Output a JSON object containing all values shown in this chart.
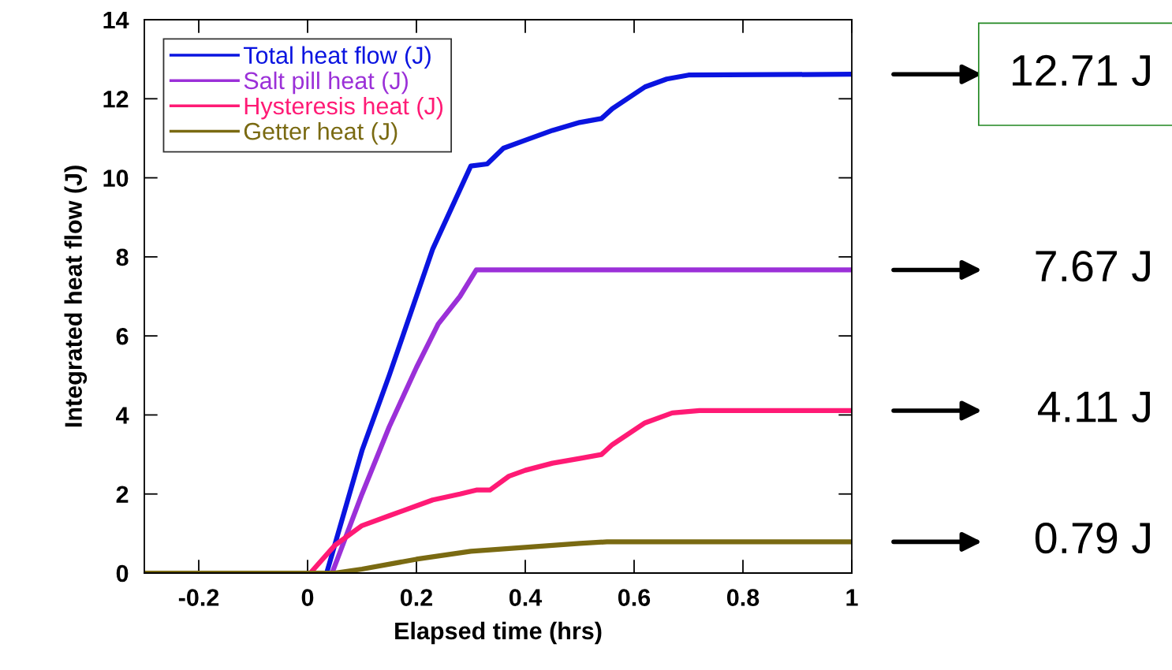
{
  "chart_data": {
    "type": "line",
    "xlabel": "Elapsed time (hrs)",
    "ylabel": "Integrated heat flow (J)",
    "xlim": [
      -0.3,
      1
    ],
    "xticks": [
      -0.2,
      0,
      0.2,
      0.4,
      0.6,
      0.8,
      1
    ],
    "ylim": [
      0,
      14
    ],
    "yticks": [
      0,
      2,
      4,
      6,
      8,
      10,
      12,
      14
    ],
    "grid": false,
    "legend": "top left",
    "marker": "none",
    "line_style": "solid",
    "series": [
      {
        "name": "Total heat flow (J)",
        "color": "#0a14e0",
        "x": [
          -0.3,
          0.035,
          0.1,
          0.15,
          0.2,
          0.23,
          0.27,
          0.3,
          0.33,
          0.36,
          0.4,
          0.45,
          0.5,
          0.54,
          0.56,
          0.62,
          0.66,
          0.7,
          1
        ],
        "values": [
          0,
          0,
          3.1,
          5.0,
          7.0,
          8.2,
          9.4,
          10.3,
          10.35,
          10.75,
          10.95,
          11.2,
          11.4,
          11.5,
          11.75,
          12.3,
          12.5,
          12.6,
          12.62
        ]
      },
      {
        "name": "Salt pill heat (J)",
        "color": "#9b30d8",
        "x": [
          -0.3,
          0.045,
          0.1,
          0.15,
          0.2,
          0.24,
          0.28,
          0.31,
          1
        ],
        "values": [
          0,
          0,
          2.0,
          3.7,
          5.2,
          6.3,
          7.0,
          7.67,
          7.67
        ]
      },
      {
        "name": "Hysteresis heat (J)",
        "color": "#ff1a75",
        "x": [
          -0.3,
          0.005,
          0.05,
          0.1,
          0.15,
          0.2,
          0.23,
          0.28,
          0.31,
          0.335,
          0.37,
          0.4,
          0.45,
          0.5,
          0.54,
          0.56,
          0.62,
          0.67,
          0.72,
          1
        ],
        "values": [
          0,
          0,
          0.7,
          1.2,
          1.45,
          1.7,
          1.85,
          2.0,
          2.1,
          2.1,
          2.45,
          2.6,
          2.78,
          2.9,
          3.0,
          3.25,
          3.8,
          4.05,
          4.11,
          4.11
        ]
      },
      {
        "name": "Getter heat (J)",
        "color": "#7a6a12",
        "x": [
          -0.3,
          0.05,
          0.1,
          0.2,
          0.3,
          0.4,
          0.5,
          0.55,
          1
        ],
        "values": [
          0,
          0,
          0.1,
          0.35,
          0.55,
          0.65,
          0.75,
          0.79,
          0.79
        ]
      }
    ],
    "annotations": [
      "12.71 J",
      "7.67 J",
      "4.11 J",
      "0.79 J"
    ]
  }
}
